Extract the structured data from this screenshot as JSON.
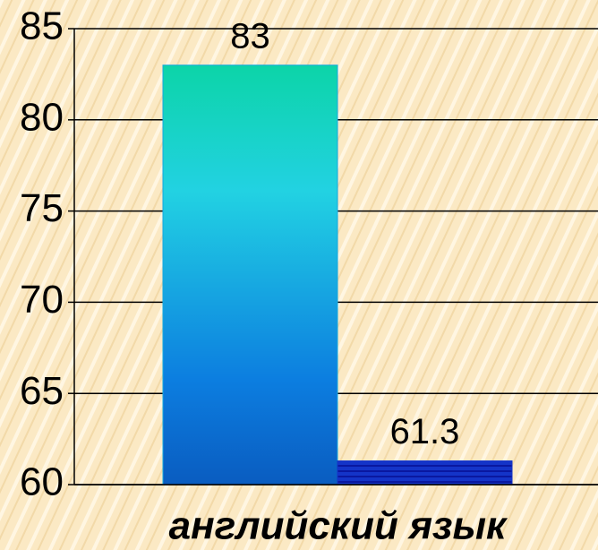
{
  "chart_data": {
    "type": "bar",
    "categories": [
      "английский язык"
    ],
    "series": [
      {
        "color": "#14a8e0",
        "values": [
          83
        ]
      },
      {
        "color": "#1434c8",
        "values": [
          61.3
        ]
      }
    ],
    "ylim": [
      60,
      85
    ],
    "yticks": [
      60,
      65,
      70,
      75,
      80,
      85
    ],
    "grid": true
  }
}
